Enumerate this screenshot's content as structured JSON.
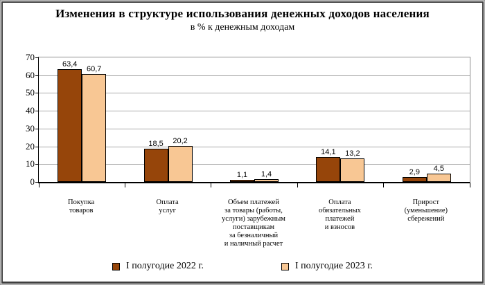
{
  "title": "Изменения в структуре использования денежных доходов населения",
  "subtitle": "в % к денежным доходам",
  "chart_data": {
    "type": "bar",
    "title": "Изменения в структуре использования денежных доходов населения",
    "subtitle": "в % к денежным доходам",
    "xlabel": "",
    "ylabel": "",
    "ylim": [
      0,
      70
    ],
    "ytick_step": 10,
    "grid": true,
    "legend_position": "bottom",
    "decimal_separator": ",",
    "categories": [
      [
        "Покупка",
        "товаров"
      ],
      [
        "Оплата",
        "услуг"
      ],
      [
        "Объем платежей",
        "за товары (работы,",
        "услуги) зарубежным",
        "поставщикам",
        "за безналичный",
        "и наличный расчет"
      ],
      [
        "Оплата",
        "обязательных",
        "платежей",
        "и взносов"
      ],
      [
        "Прирост",
        "(уменьшение)",
        "сбережений"
      ]
    ],
    "series": [
      {
        "name": "I полугодие 2022 г.",
        "color": "#96450a",
        "values": [
          63.4,
          18.5,
          1.1,
          14.1,
          2.9
        ]
      },
      {
        "name": "I полугодие 2023 г.",
        "color": "#f8c794",
        "values": [
          60.7,
          20.2,
          1.4,
          13.2,
          4.5
        ]
      }
    ]
  },
  "style_colors": {
    "grid": "#a8a8a8",
    "axis": "#000000",
    "plot_border": "#8c8c8c",
    "frame": "#3e3e3e"
  }
}
